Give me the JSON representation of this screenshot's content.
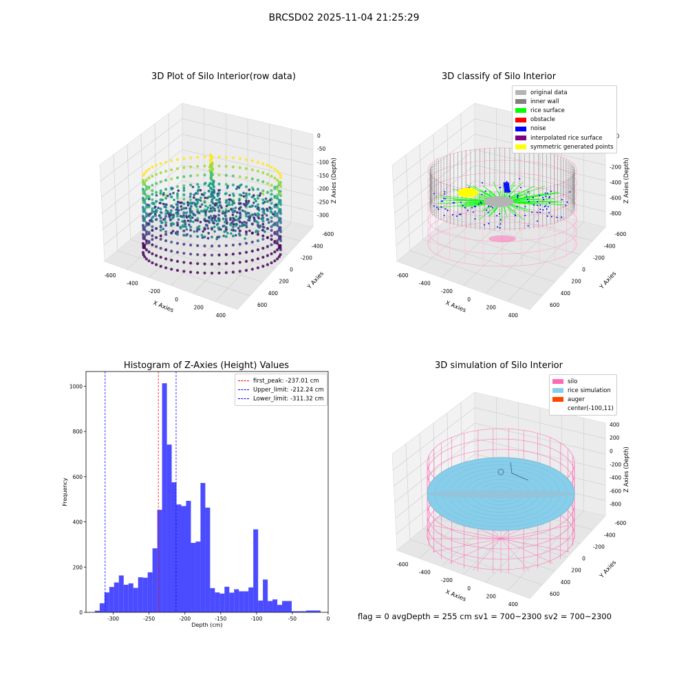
{
  "suptitle": "BRCSD02 2025-11-04 21:25:29",
  "footer": "flag = 0    avgDepth = 255 cm  sv1 = 700~2300  sv2 = 700~2300",
  "chart_data": [
    {
      "type": "scatter",
      "subtype": "3d",
      "title": "3D Plot of Silo Interior(row data)",
      "xlabel": "X Axies",
      "ylabel": "Y Axies",
      "zlabel": "Z Axies (Depth)",
      "xticks": [
        "-600",
        "-400",
        "-200",
        "0",
        "200",
        "400"
      ],
      "yticks": [
        "-600",
        "-400",
        "-200",
        "0",
        "200",
        "400",
        "600"
      ],
      "zticks": [
        "0",
        "-50",
        "-100",
        "-150",
        "-200",
        "-250",
        "-300"
      ],
      "colormap": "viridis",
      "shape": "cylindrical wall of points with rough rice surface inside, center spike near (-100, 11)"
    },
    {
      "type": "scatter",
      "subtype": "3d",
      "title": "3D classify of Silo Interior",
      "xlabel": "X Axies",
      "ylabel": "Y Axies",
      "zlabel": "Z Axies (Depth)",
      "xticks": [
        "-600",
        "-400",
        "-200",
        "0",
        "200",
        "400"
      ],
      "yticks": [
        "-600",
        "-400",
        "-200",
        "0",
        "200",
        "400",
        "600"
      ],
      "zticks": [
        "200",
        "0",
        "-200",
        "-400",
        "-600",
        "-800"
      ],
      "legend": [
        {
          "label": "original data",
          "color": "#b4b4b4"
        },
        {
          "label": "inner wall",
          "color": "#808080"
        },
        {
          "label": "rice surface",
          "color": "#00ff00"
        },
        {
          "label": "obstacle",
          "color": "#ff0000"
        },
        {
          "label": "noise",
          "color": "#0000ff"
        },
        {
          "label": "interpolated rice surface",
          "color": "#800080"
        },
        {
          "label": "symmetric generated points",
          "color": "#ffff00"
        }
      ]
    },
    {
      "type": "bar",
      "subtype": "histogram",
      "title": "Histogram of Z-Axies (Height) Values",
      "xlabel": "Depth (cm)",
      "ylabel": "Frequency",
      "xlim": [
        -338,
        0
      ],
      "ylim": [
        0,
        1065
      ],
      "xticks": [
        -300,
        -250,
        -200,
        -150,
        -100,
        -50,
        0
      ],
      "yticks": [
        0,
        200,
        400,
        600,
        800,
        1000
      ],
      "bar_color": "#4b4bff",
      "bin_width": 6.7,
      "bin_starts": [
        -325.6,
        -318.9,
        -312.2,
        -305.5,
        -298.8,
        -292.1,
        -285.4,
        -278.7,
        -272.0,
        -265.3,
        -258.6,
        -251.9,
        -245.2,
        -238.5,
        -231.8,
        -225.1,
        -218.4,
        -211.7,
        -205.0,
        -198.3,
        -191.6,
        -184.9,
        -178.2,
        -171.5,
        -164.8,
        -158.1,
        -151.4,
        -144.7,
        -138.0,
        -131.3,
        -124.6,
        -117.9,
        -111.2,
        -104.5,
        -97.8,
        -91.1,
        -84.4,
        -77.7,
        -71.0,
        -64.3,
        -57.6,
        -50.9,
        -44.2,
        -37.5,
        -30.8,
        -24.1,
        -17.4
      ],
      "values": [
        7,
        40,
        88,
        112,
        132,
        163,
        122,
        128,
        108,
        155,
        153,
        177,
        283,
        453,
        1013,
        742,
        575,
        477,
        470,
        493,
        307,
        313,
        572,
        463,
        107,
        88,
        83,
        113,
        87,
        102,
        93,
        93,
        110,
        367,
        52,
        145,
        50,
        57,
        33,
        50,
        50,
        5,
        5,
        5,
        8,
        8,
        8
      ],
      "lines": [
        {
          "label": "first_peak: -237.01 cm",
          "x": -237.01,
          "color": "#ff0000"
        },
        {
          "label": "Upper_limit: -212.24 cm",
          "x": -212.24,
          "color": "#0000ff"
        },
        {
          "label": "Lower_limit: -311.32 cm",
          "x": -311.32,
          "color": "#0000ff"
        }
      ]
    },
    {
      "type": "scatter",
      "subtype": "3d",
      "title": "3D simulation of Silo Interior",
      "xlabel": "X Axies",
      "ylabel": "Y Axies",
      "zlabel": "Z Axies (Depth)",
      "xticks": [
        "-600",
        "-400",
        "-200",
        "0",
        "200",
        "400"
      ],
      "yticks": [
        "-600",
        "-400",
        "-200",
        "0",
        "200",
        "400",
        "600"
      ],
      "zticks": [
        "400",
        "200",
        "0",
        "-200",
        "-400",
        "-600",
        "-800"
      ],
      "legend": [
        {
          "label": "silo",
          "color": "#ff69b4"
        },
        {
          "label": "rice simulation",
          "color": "#87ceeb"
        },
        {
          "label": "auger",
          "color": "#ff4500"
        },
        {
          "label": "center(-100,11)",
          "color": ""
        }
      ]
    }
  ]
}
